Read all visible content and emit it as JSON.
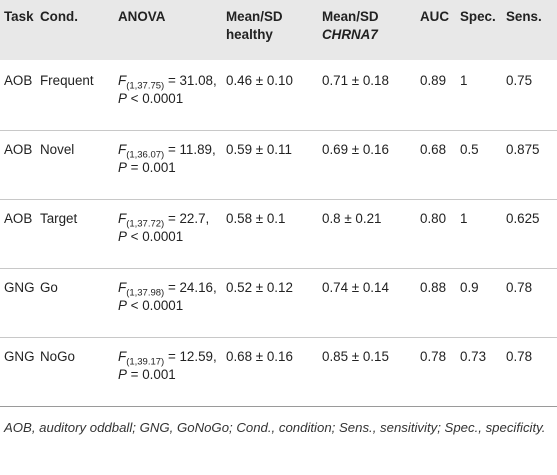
{
  "table": {
    "header": [
      "Task",
      "Cond.",
      "ANOVA",
      {
        "line1": "Mean/SD",
        "line2": "healthy"
      },
      {
        "line1": "Mean/SD",
        "line2": "CHRNA7"
      },
      "AUC",
      "Spec.",
      "Sens."
    ],
    "rows": [
      [
        "AOB",
        "Frequent",
        {
          "f": "F",
          "df": "(1,37.75)",
          "text1": " = 31.08, ",
          "p": "P",
          "text2": " < 0.0001"
        },
        "0.46 ± 0.10",
        "0.71 ± 0.18",
        "0.89",
        "1",
        "0.75"
      ],
      [
        "AOB",
        "Novel",
        {
          "f": "F",
          "df": "(1,36.07)",
          "text1": " = 11.89, ",
          "p": "P",
          "text2": " = 0.001"
        },
        "0.59 ± 0.11",
        "0.69 ± 0.16",
        "0.68",
        "0.5",
        "0.875"
      ],
      [
        "AOB",
        "Target",
        {
          "f": "F",
          "df": "(1,37.72)",
          "text1": " = 22.7, ",
          "p": "P",
          "text2": " < 0.0001"
        },
        "0.58 ± 0.1",
        "0.8 ± 0.21",
        "0.80",
        "1",
        "0.625"
      ],
      [
        "GNG",
        "Go",
        {
          "f": "F",
          "df": "(1,37.98)",
          "text1": " = 24.16, ",
          "p": "P",
          "text2": " < 0.0001"
        },
        "0.52 ± 0.12",
        "0.74 ± 0.14",
        "0.88",
        "0.9",
        "0.78"
      ],
      [
        "GNG",
        "NoGo",
        {
          "f": "F",
          "df": "(1,39.17)",
          "text1": " = 12.59, ",
          "p": "P",
          "text2": " = 0.001"
        },
        "0.68 ± 0.16",
        "0.85 ± 0.15",
        "0.78",
        "0.73",
        "0.78"
      ]
    ]
  },
  "footnote": "AOB, auditory oddball; GNG, GoNoGo; Cond., condition; Sens., sensitivity; Spec., specificity."
}
